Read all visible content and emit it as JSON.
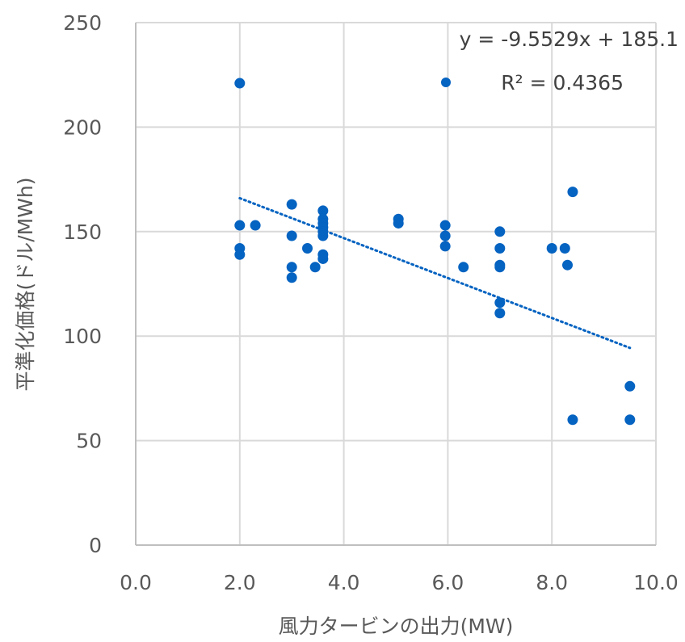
{
  "chart_data": {
    "type": "scatter",
    "title": "",
    "xlabel": "風力タービンの出力(MW)",
    "ylabel": "平準化価格(ドル/MWh)",
    "xlim": [
      0,
      10
    ],
    "ylim": [
      0,
      250
    ],
    "x_ticks": [
      "0.0",
      "2.0",
      "4.0",
      "6.0",
      "8.0",
      "10.0"
    ],
    "y_ticks": [
      "0",
      "50",
      "100",
      "150",
      "200",
      "250"
    ],
    "grid": true,
    "legend_position": "top-right",
    "marker_color": "#0563C1",
    "trendline": {
      "type": "linear",
      "style": "dotted",
      "slope": -9.5529,
      "intercept": 185.1,
      "x_range": [
        2.0,
        9.5
      ],
      "equation_label": "y = -9.5529x + 185.1",
      "r2_label": "R² = 0.4365"
    },
    "points": [
      [
        2.0,
        221
      ],
      [
        2.0,
        153
      ],
      [
        2.0,
        142
      ],
      [
        2.0,
        139
      ],
      [
        2.3,
        153
      ],
      [
        3.0,
        163
      ],
      [
        3.0,
        148
      ],
      [
        3.0,
        133
      ],
      [
        3.0,
        128
      ],
      [
        3.3,
        142
      ],
      [
        3.45,
        133
      ],
      [
        3.6,
        160
      ],
      [
        3.6,
        156
      ],
      [
        3.6,
        154
      ],
      [
        3.6,
        152
      ],
      [
        3.6,
        150
      ],
      [
        3.6,
        148
      ],
      [
        3.6,
        139
      ],
      [
        3.6,
        137
      ],
      [
        5.05,
        156
      ],
      [
        5.05,
        154
      ],
      [
        5.95,
        153
      ],
      [
        5.95,
        148
      ],
      [
        5.95,
        143
      ],
      [
        6.3,
        133
      ],
      [
        7.0,
        150
      ],
      [
        7.0,
        142
      ],
      [
        7.0,
        134
      ],
      [
        7.0,
        133
      ],
      [
        7.0,
        116
      ],
      [
        7.0,
        111
      ],
      [
        8.0,
        142
      ],
      [
        8.25,
        142
      ],
      [
        8.3,
        134
      ],
      [
        8.4,
        169
      ],
      [
        8.4,
        60
      ],
      [
        9.5,
        76
      ],
      [
        9.5,
        60
      ]
    ]
  }
}
